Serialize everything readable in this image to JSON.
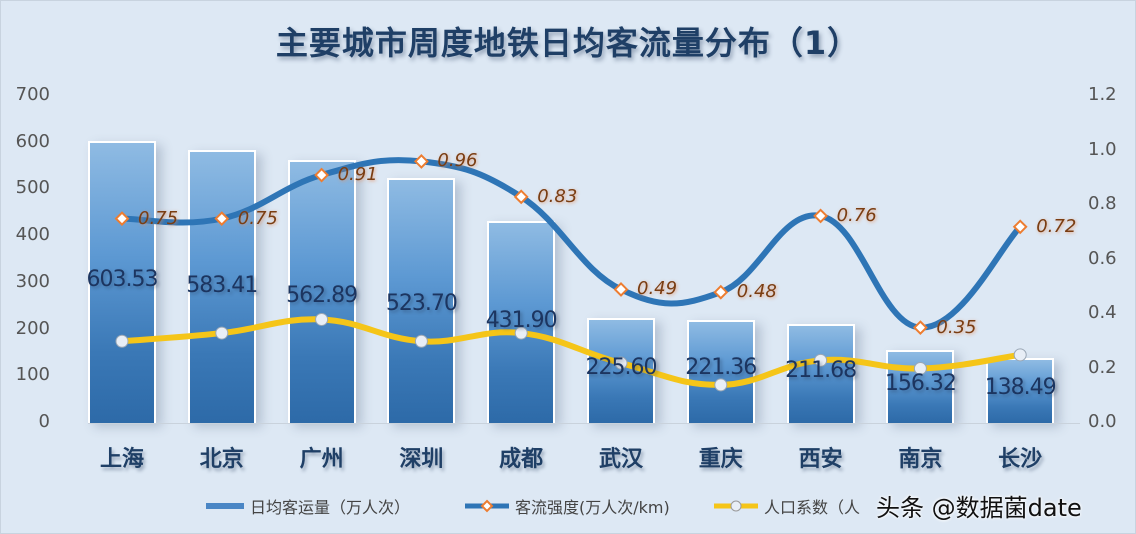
{
  "chart_data": {
    "type": "bar+line",
    "title": "主要城市周度地铁日均客流量分布（1）",
    "categories": [
      "上海",
      "北京",
      "广州",
      "深圳",
      "成都",
      "武汉",
      "重庆",
      "西安",
      "南京",
      "长沙"
    ],
    "series": [
      {
        "name": "日均客运量（万人次）",
        "type": "bar",
        "axis": "left",
        "color": "#4a86c5",
        "values": [
          603.53,
          583.41,
          562.89,
          523.7,
          431.9,
          225.6,
          221.36,
          211.68,
          156.32,
          138.49
        ],
        "labels": [
          "603.53",
          "583.41",
          "562.89",
          "523.70",
          "431.90",
          "225.60",
          "221.36",
          "211.68",
          "156.32",
          "138.49"
        ]
      },
      {
        "name": "客流强度(万人次/km)",
        "type": "line",
        "axis": "right",
        "color": "#2e75b6",
        "marker": "diamond",
        "marker_color": "#ed7d31",
        "values": [
          0.75,
          0.75,
          0.91,
          0.96,
          0.83,
          0.49,
          0.48,
          0.76,
          0.35,
          0.72
        ],
        "labels": [
          "0.75",
          "0.75",
          "0.91",
          "0.96",
          "0.83",
          "0.49",
          "0.48",
          "0.76",
          "0.35",
          "0.72"
        ]
      },
      {
        "name": "人口系数（人",
        "type": "line",
        "axis": "right",
        "color": "#f5c518",
        "marker": "circle",
        "values": [
          0.3,
          0.33,
          0.38,
          0.3,
          0.33,
          0.22,
          0.14,
          0.23,
          0.2,
          0.25
        ]
      }
    ],
    "yaxis_left": {
      "ticks": [
        "700",
        "600",
        "500",
        "400",
        "300",
        "200",
        "100",
        "0"
      ],
      "range": [
        0,
        700
      ]
    },
    "yaxis_right": {
      "ticks": [
        "1.2",
        "1.0",
        "0.8",
        "0.6",
        "0.4",
        "0.2",
        "0.0"
      ],
      "range": [
        0,
        1.2
      ]
    },
    "grid": false,
    "legend_position": "bottom"
  },
  "legend": {
    "bar": "日均客运量（万人次）",
    "intensity": "客流强度(万人次/km)",
    "population": "人口系数（人"
  },
  "watermark": "头条 @数据菌date"
}
